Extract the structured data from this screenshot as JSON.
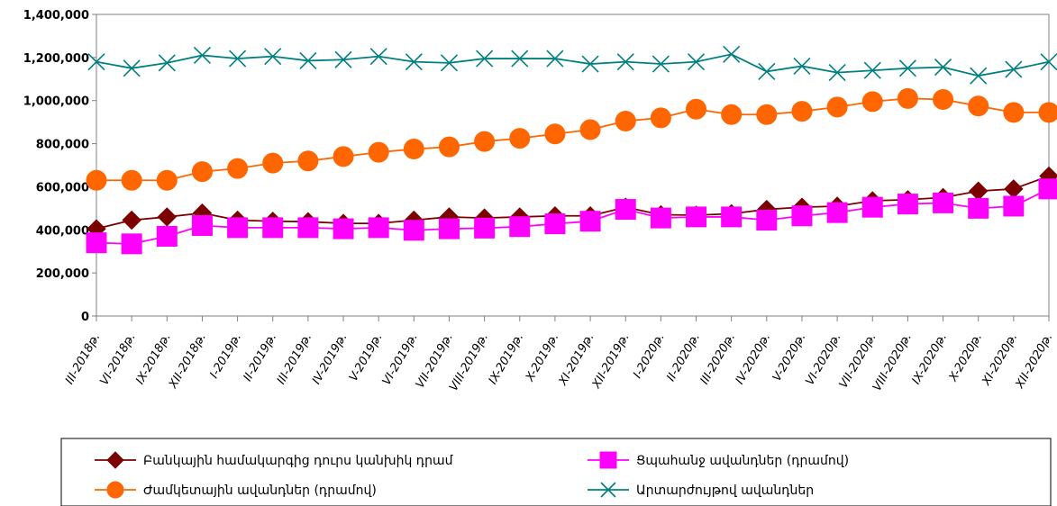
{
  "chart_data": {
    "type": "line",
    "categories": [
      "III-2018թ.",
      "VI-2018թ.",
      "IX-2018թ.",
      "XII-2018թ.",
      "I-2019թ.",
      "II-2019թ.",
      "III-2019թ.",
      "IV-2019թ.",
      "V-2019թ.",
      "VI-2019թ.",
      "VII-2019թ.",
      "VIII-2019թ.",
      "IX-2019թ.",
      "X-2019թ.",
      "XI-2019թ.",
      "XII-2019թ.",
      "I-2020թ.",
      "II-2020թ.",
      "III-2020թ.",
      "IV-2020թ.",
      "V-2020թ.",
      "VI-2020թ.",
      "VII-2020թ.",
      "VIII-2020թ.",
      "IX-2020թ.",
      "X-2020թ.",
      "XI-2020թ.",
      "XII-2020թ."
    ],
    "ylim": [
      0,
      1400000
    ],
    "yticks": [
      0,
      200000,
      400000,
      600000,
      800000,
      1000000,
      1200000,
      1400000
    ],
    "ytick_labels": [
      "0",
      "200,000",
      "400,000",
      "600,000",
      "800,000",
      "1,000,000",
      "1,200,000",
      "1,400,000"
    ],
    "legend_position": "bottom",
    "series": [
      {
        "name": "Բանկային համակարգից դուրս կանխիկ դրամ",
        "color": "#7b0000",
        "marker": "diamond",
        "values": [
          405000,
          445000,
          460000,
          478000,
          445000,
          440000,
          438000,
          430000,
          430000,
          445000,
          460000,
          455000,
          460000,
          465000,
          465000,
          505000,
          470000,
          468000,
          475000,
          495000,
          505000,
          510000,
          535000,
          540000,
          550000,
          580000,
          590000,
          650000
        ]
      },
      {
        "name": "Ցպահանջ ավանդներ (դրամով)",
        "color": "#ff00ff",
        "marker": "square",
        "values": [
          340000,
          335000,
          370000,
          420000,
          410000,
          410000,
          410000,
          405000,
          410000,
          398000,
          405000,
          408000,
          415000,
          428000,
          440000,
          495000,
          455000,
          460000,
          460000,
          445000,
          465000,
          480000,
          505000,
          520000,
          525000,
          500000,
          510000,
          590000
        ]
      },
      {
        "name": "Ժամկետային ավանդներ (դրամով)",
        "color": "#ff6600",
        "marker": "circle",
        "values": [
          630000,
          630000,
          630000,
          670000,
          685000,
          710000,
          720000,
          740000,
          760000,
          775000,
          785000,
          810000,
          825000,
          845000,
          865000,
          905000,
          920000,
          960000,
          935000,
          935000,
          950000,
          970000,
          995000,
          1010000,
          1005000,
          975000,
          945000,
          945000
        ]
      },
      {
        "name": "Արտարժույթով ավանդներ",
        "color": "#008080",
        "marker": "x",
        "values": [
          1180000,
          1150000,
          1175000,
          1210000,
          1195000,
          1205000,
          1185000,
          1190000,
          1205000,
          1180000,
          1175000,
          1195000,
          1195000,
          1195000,
          1170000,
          1180000,
          1170000,
          1180000,
          1215000,
          1135000,
          1160000,
          1130000,
          1140000,
          1150000,
          1155000,
          1115000,
          1145000,
          1180000
        ]
      }
    ]
  }
}
